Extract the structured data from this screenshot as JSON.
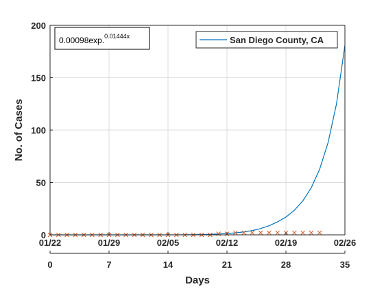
{
  "chart_data": {
    "type": "line",
    "xlabel": "Days",
    "ylabel": "No. of Cases",
    "xlim": [
      0,
      35
    ],
    "ylim": [
      0,
      200
    ],
    "x_ticks": [
      0,
      7,
      14,
      21,
      28,
      35
    ],
    "y_ticks": [
      0,
      50,
      100,
      150,
      200
    ],
    "date_ticks": [
      "01/22",
      "01/29",
      "02/05",
      "02/12",
      "02/19",
      "02/26"
    ],
    "grid": true,
    "legend_position": "top-right",
    "annotation": {
      "base": "0.00098exp.",
      "exponent": "0.01444x"
    },
    "series": [
      {
        "name": "San Diego County, CA",
        "style": "line",
        "color": "#0072bd",
        "x": [
          0,
          2,
          4,
          6,
          8,
          10,
          12,
          14,
          16,
          18,
          19,
          20,
          21,
          22,
          23,
          24,
          25,
          26,
          27,
          28,
          29,
          30,
          31,
          32,
          33,
          34,
          35
        ],
        "y": [
          0,
          0,
          0,
          0,
          0,
          0,
          0,
          0,
          0.1,
          0.3,
          0.5,
          0.8,
          1.3,
          1.9,
          2.8,
          4.1,
          6.0,
          8.7,
          12.4,
          17.0,
          23.5,
          32.4,
          44.9,
          62.6,
          88.0,
          125.0,
          181.0
        ]
      },
      {
        "name": "",
        "style": "x-marker",
        "color": "#d95319",
        "x": [
          0,
          1,
          2,
          3,
          4,
          5,
          6,
          7,
          8,
          9,
          10,
          11,
          12,
          13,
          14,
          15,
          16,
          17,
          18,
          19,
          20,
          21,
          22,
          23,
          24,
          25,
          26,
          27,
          28,
          29,
          30,
          31,
          32
        ],
        "y": [
          0,
          0,
          0,
          0,
          0,
          0,
          0,
          0,
          0,
          0,
          0,
          0,
          0,
          0,
          0,
          0,
          0,
          0,
          0,
          0,
          1,
          1,
          2,
          2,
          2,
          2,
          2,
          2,
          2,
          2,
          2,
          2,
          2
        ]
      }
    ]
  }
}
